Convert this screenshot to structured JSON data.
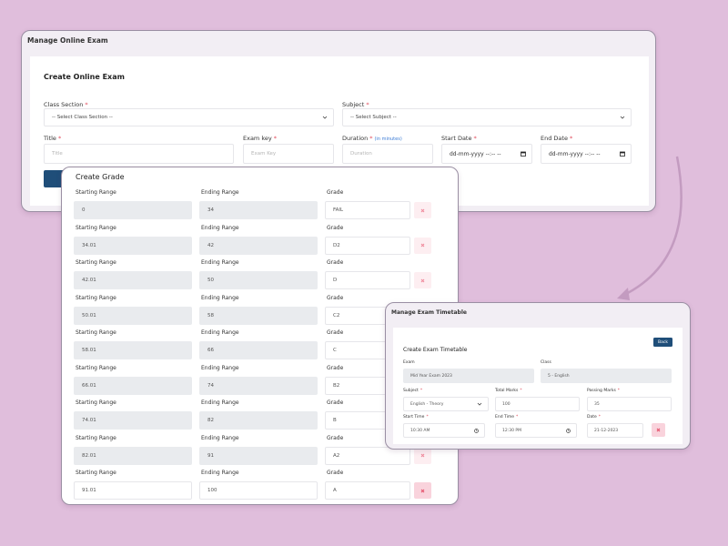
{
  "online_exam": {
    "header": "Manage Online Exam",
    "title": "Create Online Exam",
    "fields": [
      {
        "label": "Class Section",
        "required": "*",
        "placeholder": "-- Select Class Section --"
      },
      {
        "label": "Subject",
        "required": "*",
        "placeholder": "-- Select Subject --"
      },
      {
        "label": "Title",
        "required": "*",
        "placeholder": "Title"
      },
      {
        "label": "Exam key",
        "required": "*",
        "placeholder": "Exam Key"
      },
      {
        "label": "Duration",
        "required": "*",
        "hint": "(in minutes)",
        "placeholder": "Duration"
      },
      {
        "label": "Start Date",
        "required": "*",
        "placeholder": "dd-mm-yyyy --:-- --"
      },
      {
        "label": "End Date",
        "required": "*",
        "placeholder": "dd-mm-yyyy --:-- --"
      }
    ]
  },
  "grade": {
    "title": "Create Grade",
    "column_labels": [
      "Starting Range",
      "Ending Range",
      "Grade"
    ],
    "rows": [
      [
        "0",
        "34",
        "FAIL"
      ],
      [
        "34.01",
        "42",
        "D2"
      ],
      [
        "42.01",
        "50",
        "D"
      ],
      [
        "50.01",
        "58",
        "C2"
      ],
      [
        "58.01",
        "66",
        "C"
      ],
      [
        "66.01",
        "74",
        "B2"
      ],
      [
        "74.01",
        "82",
        "B"
      ],
      [
        "82.01",
        "91",
        "A2"
      ],
      [
        "91.01",
        "100",
        "A"
      ]
    ]
  },
  "timetable": {
    "header": "Manage Exam Timetable",
    "title": "Create Exam Timetable",
    "back": "Back",
    "fields": [
      {
        "label": "Exam",
        "value": "Mid Year Exam 2023"
      },
      {
        "label": "Class",
        "value": "5 - English"
      },
      {
        "label": "Subject",
        "required": "*",
        "value": "English - Theory"
      },
      {
        "label": "Total Marks",
        "required": "*",
        "value": "100"
      },
      {
        "label": "Passing Marks",
        "required": "*",
        "value": "35"
      },
      {
        "label": "Start Time",
        "required": "*",
        "value": "10:30 AM"
      },
      {
        "label": "End Time",
        "required": "*",
        "value": "12:30 PM"
      },
      {
        "label": "Date",
        "required": "*",
        "value": "21-12-2023"
      }
    ]
  }
}
